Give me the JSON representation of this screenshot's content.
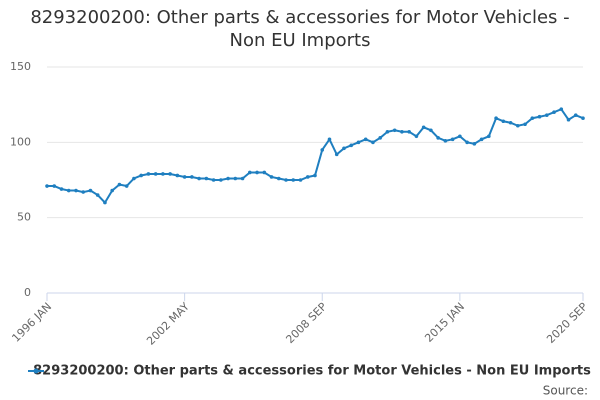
{
  "chart_data": {
    "type": "line",
    "title": "8293200200: Other parts & accessories for Motor Vehicles - Non EU Imports",
    "source": "Source:",
    "categories": [
      "1996 JAN",
      null,
      null,
      null,
      null,
      null,
      null,
      null,
      null,
      null,
      null,
      null,
      null,
      null,
      null,
      null,
      null,
      null,
      null,
      "2002 MAY",
      null,
      null,
      null,
      null,
      null,
      null,
      null,
      null,
      null,
      null,
      null,
      null,
      null,
      null,
      null,
      null,
      null,
      null,
      "2008 SEP",
      null,
      null,
      null,
      null,
      null,
      null,
      null,
      null,
      null,
      null,
      null,
      null,
      null,
      null,
      null,
      null,
      null,
      null,
      "2015 JAN",
      null,
      null,
      null,
      null,
      null,
      null,
      null,
      null,
      null,
      null,
      null,
      null,
      null,
      null,
      null,
      null,
      "2020 SEP"
    ],
    "series": [
      {
        "name": "8293200200: Other parts & accessories for Motor Vehicles - Non EU Imports",
        "color": "#1f7fc0",
        "values": [
          71,
          71,
          69,
          68,
          68,
          67,
          68,
          65,
          60,
          68,
          72,
          71,
          76,
          78,
          79,
          79,
          79,
          79,
          78,
          77,
          77,
          76,
          76,
          75,
          75,
          76,
          76,
          76,
          80,
          80,
          80,
          77,
          76,
          75,
          75,
          75,
          77,
          78,
          95,
          102,
          92,
          96,
          98,
          100,
          102,
          100,
          103,
          107,
          108,
          107,
          107,
          104,
          110,
          108,
          103,
          101,
          102,
          104,
          100,
          99,
          102,
          104,
          116,
          114,
          113,
          111,
          112,
          116,
          117,
          118,
          120,
          122,
          115,
          118,
          116
        ]
      }
    ],
    "ylim": [
      0,
      150
    ],
    "yticks": [
      0,
      50,
      100,
      150
    ],
    "grid": true
  }
}
